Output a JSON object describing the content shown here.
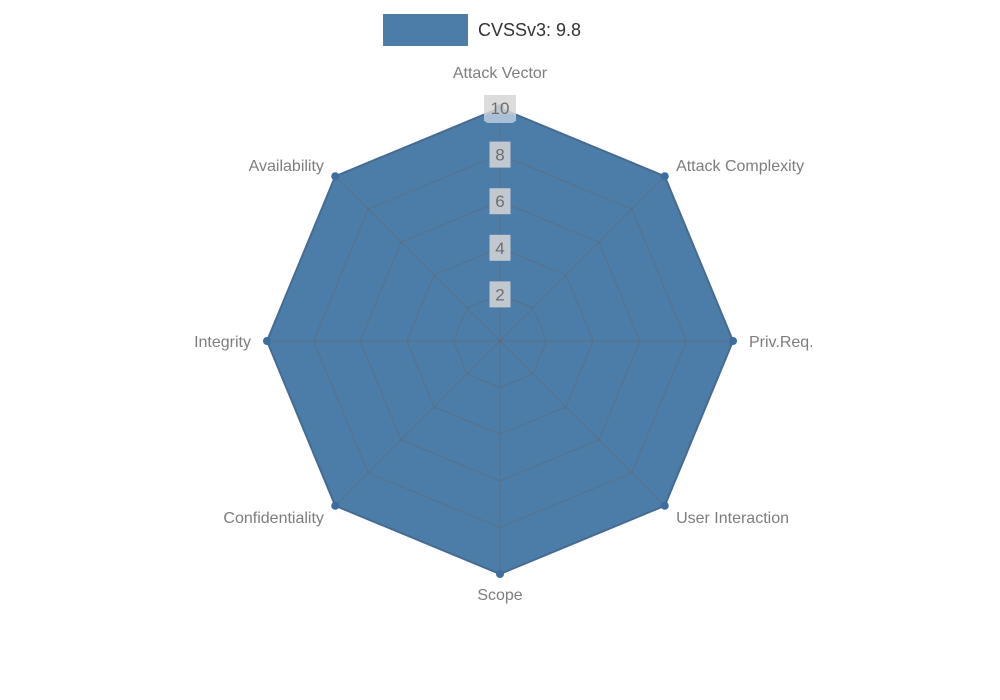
{
  "legend": {
    "label": "CVSSv3: 9.8"
  },
  "colors": {
    "series_fill": "#4c7ca8",
    "series_stroke": "#3d6d9e",
    "highlight": "#a9c0d6",
    "grid": "#666666",
    "axis_label": "#7d7d7d",
    "tick_label": "#6e6e6e",
    "tick_bg": "#d6d6d6",
    "legend_text": "#333333",
    "background": "#ffffff"
  },
  "chart_data": {
    "type": "radar",
    "title": "CVSSv3: 9.8",
    "categories": [
      "Attack Vector",
      "Attack Complexity",
      "Priv.Req.",
      "User Interaction",
      "Scope",
      "Confidentiality",
      "Integrity",
      "Availability"
    ],
    "series": [
      {
        "name": "CVSSv3: 9.8",
        "values": [
          10,
          10,
          10,
          10,
          10,
          10,
          10,
          10
        ]
      }
    ],
    "ticks": [
      2,
      4,
      6,
      8,
      10
    ],
    "max": 10,
    "grid": true,
    "legend_position": "top"
  }
}
